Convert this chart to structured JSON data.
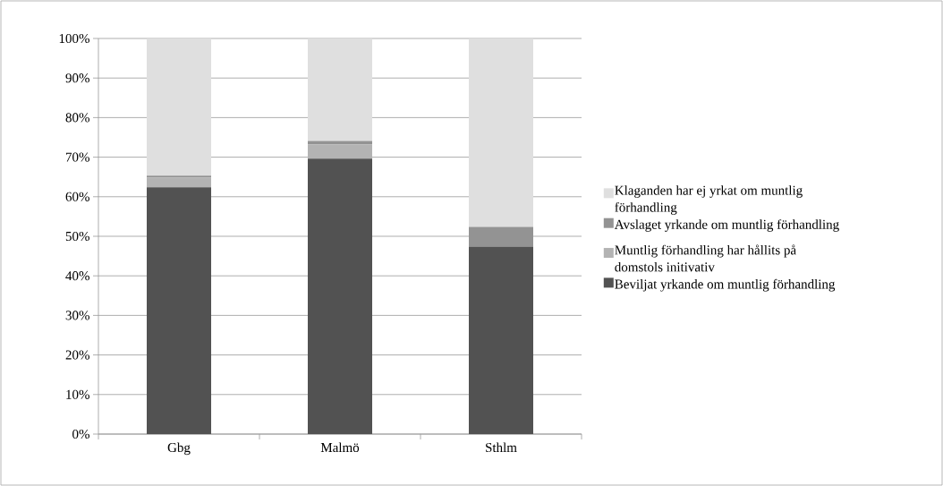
{
  "chart_data": {
    "type": "bar",
    "stacked": true,
    "categories": [
      "Gbg",
      "Malmö",
      "Sthlm"
    ],
    "series": [
      {
        "name": "Beviljat yrkande om muntlig förhandling",
        "color": "#525252",
        "values": [
          62.4,
          69.6,
          47.4
        ]
      },
      {
        "name": "Muntlig förhandling har hållits på domstols initivativ",
        "color": "#b3b3b3",
        "values": [
          2.4,
          3.6,
          0
        ]
      },
      {
        "name": "Avslaget yrkande om muntlig förhandling",
        "color": "#939393",
        "values": [
          0.5,
          0.9,
          5.0
        ]
      },
      {
        "name": "Klaganden har ej yrkat om muntlig förhandling",
        "color": "#dfdfdf",
        "values": [
          34.7,
          25.9,
          47.6
        ]
      }
    ],
    "ylim": [
      0,
      100
    ],
    "yticks": [
      {
        "value": 0,
        "label": "0%"
      },
      {
        "value": 10,
        "label": "10%"
      },
      {
        "value": 20,
        "label": "20%"
      },
      {
        "value": 30,
        "label": "30%"
      },
      {
        "value": 40,
        "label": "40%"
      },
      {
        "value": 50,
        "label": "50%"
      },
      {
        "value": 60,
        "label": "60%"
      },
      {
        "value": 70,
        "label": "70%"
      },
      {
        "value": 80,
        "label": "80%"
      },
      {
        "value": 90,
        "label": "90%"
      },
      {
        "value": 100,
        "label": "100%"
      }
    ],
    "grid": "y",
    "legend": "right"
  }
}
